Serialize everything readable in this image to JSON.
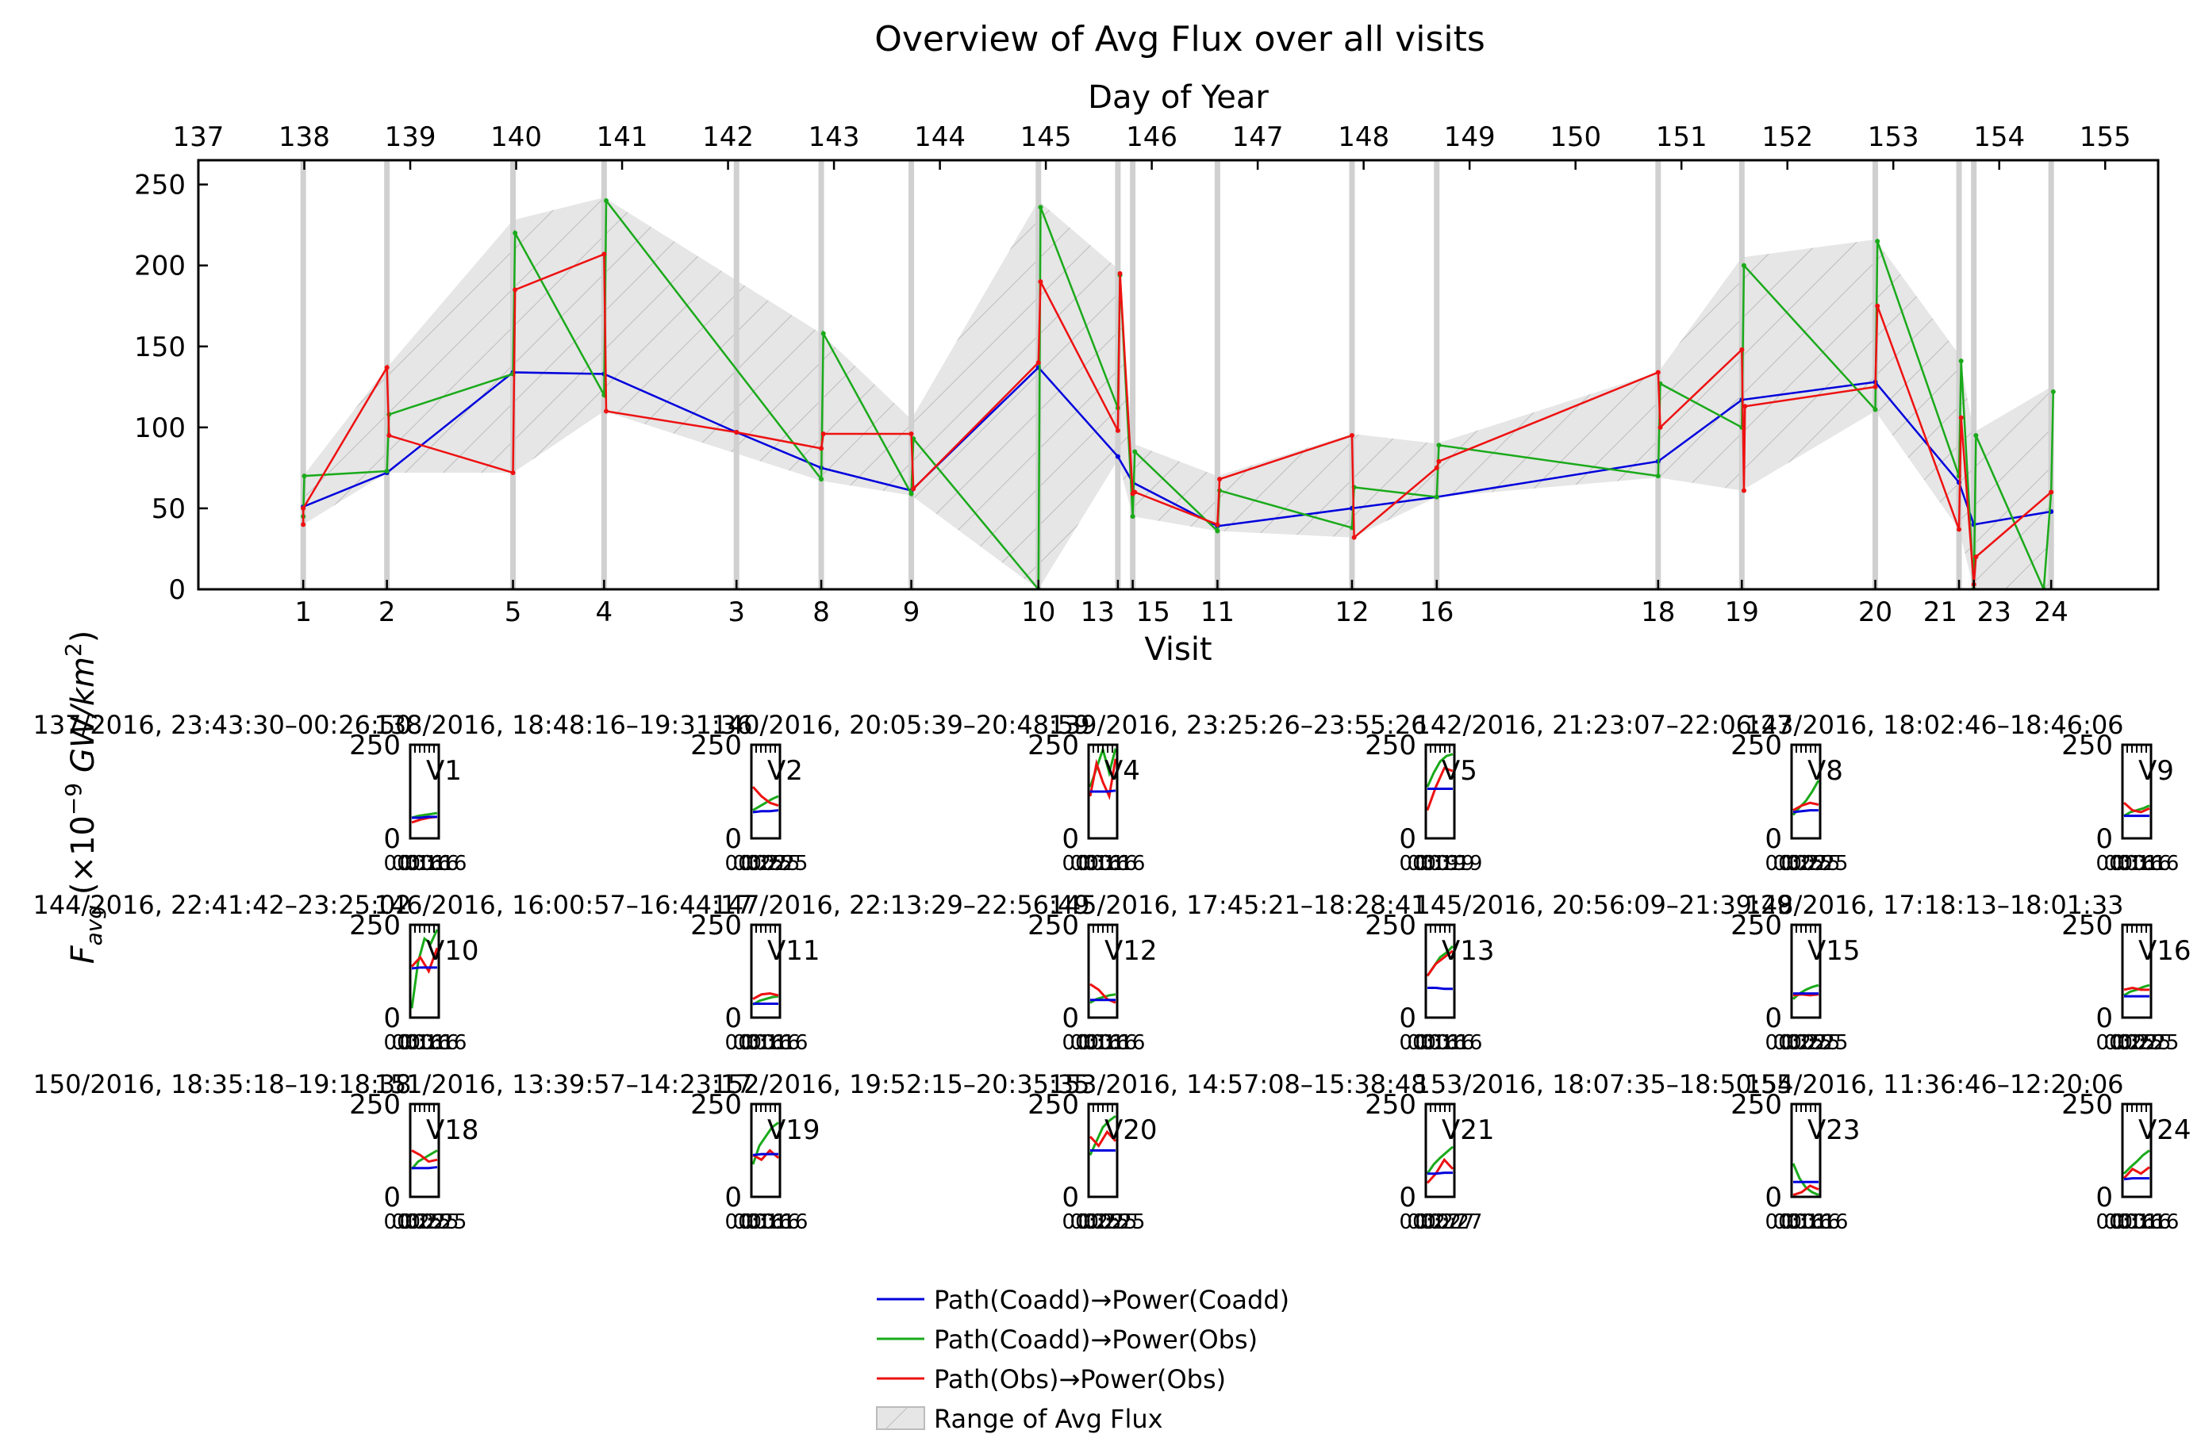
{
  "title": "Overview of Avg Flux over all visits",
  "ylabel": "F_avg (×10^-9 GW/km^2)",
  "ylabel_parts": {
    "f": "F",
    "sub": "avg",
    "pre": " (×10",
    "sup": "−9",
    "post": " GW/km",
    "sup2": "2",
    "close": ")"
  },
  "chart_data": {
    "type": "line",
    "main": {
      "xlabel": "Visit",
      "x2label": "Day of Year",
      "xlim": [
        137,
        155.5
      ],
      "ylim": [
        0,
        265
      ],
      "yticks": [
        0,
        50,
        100,
        150,
        200,
        250
      ],
      "doy_ticks": [
        137,
        138,
        139,
        140,
        141,
        142,
        143,
        144,
        145,
        146,
        147,
        148,
        149,
        150,
        151,
        152,
        153,
        154,
        155
      ],
      "grid": false,
      "visits": [
        {
          "label": "1",
          "x": 137.99
        },
        {
          "label": "2",
          "x": 138.78
        },
        {
          "label": "5",
          "x": 139.97
        },
        {
          "label": "4",
          "x": 140.83
        },
        {
          "label": "3",
          "x": 142.08
        },
        {
          "label": "8",
          "x": 142.88
        },
        {
          "label": "9",
          "x": 143.73
        },
        {
          "label": "10",
          "x": 144.93
        },
        {
          "label": "13",
          "x": 145.68
        },
        {
          "label": "15",
          "x": 145.82
        },
        {
          "label": "11",
          "x": 146.62
        },
        {
          "label": "12",
          "x": 147.89
        },
        {
          "label": "16",
          "x": 148.69
        },
        {
          "label": "18",
          "x": 150.78
        },
        {
          "label": "19",
          "x": 151.57
        },
        {
          "label": "20",
          "x": 152.83
        },
        {
          "label": "21",
          "x": 153.62
        },
        {
          "label": "23",
          "x": 153.76
        },
        {
          "label": "24",
          "x": 154.49
        }
      ],
      "series": [
        {
          "name": "Path(Coadd)→Power(Coadd)",
          "color": "#0000dd",
          "points": [
            [
              137.99,
              51
            ],
            [
              138.78,
              72
            ],
            [
              139.97,
              134
            ],
            [
              140.83,
              133
            ],
            [
              142.08,
              97
            ],
            [
              142.88,
              75
            ],
            [
              143.73,
              61
            ],
            [
              144.93,
              137
            ],
            [
              145.68,
              82
            ],
            [
              145.82,
              66
            ],
            [
              146.62,
              39
            ],
            [
              147.89,
              50
            ],
            [
              148.69,
              57
            ],
            [
              150.78,
              79
            ],
            [
              151.57,
              117
            ],
            [
              152.83,
              128
            ],
            [
              153.62,
              66
            ],
            [
              153.76,
              40
            ],
            [
              154.49,
              48
            ]
          ]
        },
        {
          "name": "Path(Coadd)→Power(Obs)",
          "color": "#1aaa1a",
          "points": [
            [
              137.99,
              45
            ],
            [
              138.0,
              70
            ],
            [
              138.78,
              73
            ],
            [
              138.8,
              108
            ],
            [
              139.97,
              133
            ],
            [
              139.99,
              220
            ],
            [
              140.83,
              120
            ],
            [
              140.85,
              240
            ],
            [
              142.88,
              68
            ],
            [
              142.9,
              158
            ],
            [
              143.73,
              59
            ],
            [
              143.75,
              93
            ],
            [
              144.93,
              0
            ],
            [
              144.95,
              236
            ],
            [
              145.68,
              112
            ],
            [
              145.7,
              194
            ],
            [
              145.82,
              45
            ],
            [
              145.84,
              85
            ],
            [
              146.62,
              36
            ],
            [
              146.64,
              61
            ],
            [
              147.89,
              38
            ],
            [
              147.91,
              63
            ],
            [
              148.69,
              57
            ],
            [
              148.71,
              89
            ],
            [
              150.78,
              70
            ],
            [
              150.8,
              127
            ],
            [
              151.57,
              100
            ],
            [
              151.59,
              200
            ],
            [
              152.83,
              111
            ],
            [
              152.85,
              215
            ],
            [
              153.62,
              70
            ],
            [
              153.64,
              141
            ],
            [
              153.76,
              0
            ],
            [
              153.78,
              95
            ],
            [
              154.42,
              0
            ],
            [
              154.49,
              60
            ],
            [
              154.51,
              122
            ]
          ]
        },
        {
          "name": "Path(Obs)→Power(Obs)",
          "color": "#ee1111",
          "points": [
            [
              137.99,
              40
            ],
            [
              137.99,
              50
            ],
            [
              138.78,
              137
            ],
            [
              138.8,
              95
            ],
            [
              139.97,
              72
            ],
            [
              139.99,
              185
            ],
            [
              140.83,
              207
            ],
            [
              140.85,
              110
            ],
            [
              142.08,
              97
            ],
            [
              142.88,
              87
            ],
            [
              142.9,
              96
            ],
            [
              143.73,
              96
            ],
            [
              143.75,
              62
            ],
            [
              144.93,
              140
            ],
            [
              144.95,
              190
            ],
            [
              145.68,
              98
            ],
            [
              145.7,
              195
            ],
            [
              145.82,
              59
            ],
            [
              145.84,
              60
            ],
            [
              146.62,
              40
            ],
            [
              146.64,
              68
            ],
            [
              147.89,
              95
            ],
            [
              147.91,
              32
            ],
            [
              148.69,
              75
            ],
            [
              148.71,
              79
            ],
            [
              150.78,
              134
            ],
            [
              150.8,
              100
            ],
            [
              151.57,
              148
            ],
            [
              151.59,
              61
            ],
            [
              151.6,
              113
            ],
            [
              152.83,
              125
            ],
            [
              152.85,
              175
            ],
            [
              153.62,
              37
            ],
            [
              153.64,
              106
            ],
            [
              153.76,
              3
            ],
            [
              153.78,
              20
            ],
            [
              154.49,
              60
            ]
          ]
        }
      ],
      "range_band": {
        "name": "Range of Avg Flux",
        "color": "#e4e4e4",
        "upper": [
          [
            137.99,
            70
          ],
          [
            138.78,
            137
          ],
          [
            139.97,
            228
          ],
          [
            140.83,
            242
          ],
          [
            142.88,
            158
          ],
          [
            143.73,
            105
          ],
          [
            144.93,
            240
          ],
          [
            145.68,
            198
          ],
          [
            145.82,
            90
          ],
          [
            146.62,
            70
          ],
          [
            147.89,
            96
          ],
          [
            148.69,
            90
          ],
          [
            150.78,
            134
          ],
          [
            151.57,
            205
          ],
          [
            152.83,
            216
          ],
          [
            153.62,
            145
          ],
          [
            153.76,
            97
          ],
          [
            154.49,
            125
          ]
        ],
        "lower": [
          [
            137.99,
            40
          ],
          [
            138.78,
            72
          ],
          [
            139.97,
            72
          ],
          [
            140.83,
            110
          ],
          [
            142.88,
            67
          ],
          [
            143.73,
            58
          ],
          [
            144.93,
            0
          ],
          [
            145.68,
            80
          ],
          [
            145.82,
            45
          ],
          [
            146.62,
            36
          ],
          [
            147.89,
            32
          ],
          [
            148.69,
            57
          ],
          [
            150.78,
            69
          ],
          [
            151.57,
            61
          ],
          [
            152.83,
            110
          ],
          [
            153.62,
            37
          ],
          [
            153.76,
            0
          ],
          [
            154.49,
            0
          ]
        ]
      }
    },
    "subplots": [
      {
        "title": "137/2016, 23:43:30–00:26:50",
        "label": "V1",
        "tick": "00:16",
        "s_blue": [
          0.22,
          0.22,
          0.23,
          0.23
        ],
        "s_green": [
          0.22,
          0.24,
          0.25,
          0.26,
          0.27
        ],
        "s_red": [
          0.17,
          0.2,
          0.22,
          0.23
        ]
      },
      {
        "title": "138/2016, 18:48:16–19:31:36",
        "label": "V2",
        "tick": "00:25",
        "s_blue": [
          0.28,
          0.29,
          0.29,
          0.3
        ],
        "s_green": [
          0.3,
          0.34,
          0.38,
          0.42,
          0.45
        ],
        "s_red": [
          0.55,
          0.45,
          0.38,
          0.35
        ]
      },
      {
        "title": "140/2016, 20:05:39–20:48:59",
        "label": "V4",
        "tick": "00:16",
        "s_blue": [
          0.5,
          0.5,
          0.5,
          0.51
        ],
        "s_green": [
          0.55,
          0.75,
          0.95,
          0.7,
          0.96
        ],
        "s_red": [
          0.45,
          0.8,
          0.6,
          0.45,
          0.85
        ]
      },
      {
        "title": "139/2016, 23:25:26–23:55:26",
        "label": "V5",
        "tick": "00:19",
        "s_blue": [
          0.53,
          0.53,
          0.53,
          0.53
        ],
        "s_green": [
          0.55,
          0.7,
          0.82,
          0.88,
          0.9
        ],
        "s_red": [
          0.3,
          0.55,
          0.75,
          0.72
        ]
      },
      {
        "title": "142/2016, 21:23:07–22:06:27",
        "label": "V8",
        "tick": "00:25",
        "s_blue": [
          0.28,
          0.29,
          0.3,
          0.3
        ],
        "s_green": [
          0.25,
          0.33,
          0.4,
          0.5,
          0.62
        ],
        "s_red": [
          0.3,
          0.35,
          0.38,
          0.36
        ]
      },
      {
        "title": "143/2016, 18:02:46–18:46:06",
        "label": "V9",
        "tick": "00:16",
        "s_blue": [
          0.24,
          0.24,
          0.24,
          0.24
        ],
        "s_green": [
          0.24,
          0.28,
          0.3,
          0.32,
          0.35
        ],
        "s_red": [
          0.38,
          0.3,
          0.28,
          0.32
        ]
      },
      {
        "title": "144/2016, 22:41:42–23:25:02",
        "label": "V10",
        "tick": "00:16",
        "s_blue": [
          0.53,
          0.54,
          0.54,
          0.54
        ],
        "s_green": [
          0.1,
          0.6,
          0.85,
          0.8,
          0.95
        ],
        "s_red": [
          0.55,
          0.65,
          0.5,
          0.75
        ]
      },
      {
        "title": "146/2016, 16:00:57–16:44:17",
        "label": "V11",
        "tick": "00:16",
        "s_blue": [
          0.15,
          0.15,
          0.15,
          0.15
        ],
        "s_green": [
          0.14,
          0.18,
          0.2,
          0.22,
          0.23
        ],
        "s_red": [
          0.2,
          0.25,
          0.26,
          0.24
        ]
      },
      {
        "title": "147/2016, 22:13:29–22:56:49",
        "label": "V12",
        "tick": "00:16",
        "s_blue": [
          0.19,
          0.19,
          0.19,
          0.19
        ],
        "s_green": [
          0.16,
          0.2,
          0.22,
          0.24,
          0.25
        ],
        "s_red": [
          0.36,
          0.3,
          0.2,
          0.16
        ]
      },
      {
        "title": "145/2016, 17:45:21–18:28:41",
        "label": "V13",
        "tick": "00:16",
        "s_blue": [
          0.32,
          0.32,
          0.31,
          0.31
        ],
        "s_green": [
          0.45,
          0.55,
          0.65,
          0.7,
          0.77
        ],
        "s_red": [
          0.45,
          0.58,
          0.65,
          0.72
        ]
      },
      {
        "title": "145/2016, 20:56:09–21:39:29",
        "label": "V15",
        "tick": "00:25",
        "s_blue": [
          0.26,
          0.26,
          0.26,
          0.26
        ],
        "s_green": [
          0.2,
          0.26,
          0.3,
          0.33,
          0.35
        ],
        "s_red": [
          0.24,
          0.25,
          0.24,
          0.25
        ]
      },
      {
        "title": "148/2016, 17:18:13–18:01:33",
        "label": "V16",
        "tick": "00:25",
        "s_blue": [
          0.23,
          0.23,
          0.23,
          0.23
        ],
        "s_green": [
          0.24,
          0.28,
          0.3,
          0.33,
          0.35
        ],
        "s_red": [
          0.3,
          0.32,
          0.3,
          0.3
        ]
      },
      {
        "title": "150/2016, 18:35:18–19:18:38",
        "label": "V18",
        "tick": "00:25",
        "s_blue": [
          0.31,
          0.31,
          0.31,
          0.32
        ],
        "s_green": [
          0.3,
          0.38,
          0.42,
          0.46,
          0.5
        ],
        "s_red": [
          0.5,
          0.45,
          0.38,
          0.4
        ]
      },
      {
        "title": "151/2016, 13:39:57–14:23:17",
        "label": "V19",
        "tick": "00:16",
        "s_blue": [
          0.45,
          0.46,
          0.46,
          0.46
        ],
        "s_green": [
          0.35,
          0.55,
          0.65,
          0.75,
          0.8
        ],
        "s_red": [
          0.45,
          0.4,
          0.5,
          0.42
        ]
      },
      {
        "title": "152/2016, 19:52:15–20:35:35",
        "label": "V20",
        "tick": "00:25",
        "s_blue": [
          0.5,
          0.5,
          0.5,
          0.5
        ],
        "s_green": [
          0.45,
          0.6,
          0.75,
          0.82,
          0.87
        ],
        "s_red": [
          0.65,
          0.55,
          0.7,
          0.6
        ]
      },
      {
        "title": "153/2016, 14:57:08–15:38:48",
        "label": "V21",
        "tick": "00:27",
        "s_blue": [
          0.25,
          0.25,
          0.26,
          0.26
        ],
        "s_green": [
          0.25,
          0.35,
          0.42,
          0.48,
          0.54
        ],
        "s_red": [
          0.15,
          0.25,
          0.4,
          0.3
        ]
      },
      {
        "title": "153/2016, 18:07:35–18:50:55",
        "label": "V23",
        "tick": "00:16",
        "s_blue": [
          0.16,
          0.16,
          0.16,
          0.16
        ],
        "s_green": [
          0.36,
          0.2,
          0.1,
          0.05,
          0.02
        ],
        "s_red": [
          0.02,
          0.05,
          0.12,
          0.08
        ]
      },
      {
        "title": "154/2016, 11:36:46–12:20:06",
        "label": "V24",
        "tick": "00:16",
        "s_blue": [
          0.19,
          0.2,
          0.2,
          0.2
        ],
        "s_green": [
          0.25,
          0.32,
          0.38,
          0.45,
          0.5
        ],
        "s_red": [
          0.2,
          0.3,
          0.25,
          0.32
        ]
      }
    ],
    "subplot_yticks": [
      "0",
      "250"
    ],
    "legend": {
      "placement": "bottom-center",
      "entries": [
        {
          "label": "Path(Coadd)→Power(Coadd)",
          "color": "#0000dd",
          "kind": "line"
        },
        {
          "label": "Path(Coadd)→Power(Obs)",
          "color": "#1aaa1a",
          "kind": "line"
        },
        {
          "label": "Path(Obs)→Power(Obs)",
          "color": "#ee1111",
          "kind": "line"
        },
        {
          "label": "Range of Avg Flux",
          "color": "#e4e4e4",
          "kind": "patch"
        }
      ]
    }
  }
}
